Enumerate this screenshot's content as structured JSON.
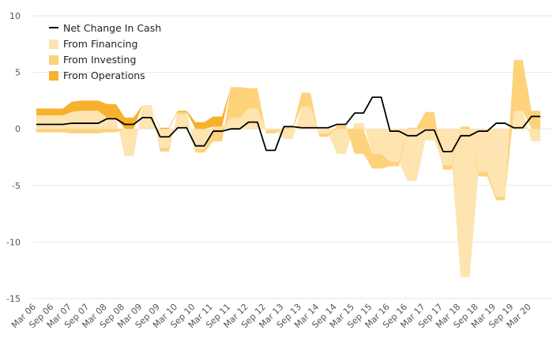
{
  "chart_data": {
    "type": "area",
    "title": "",
    "xlabel": "",
    "ylabel": "",
    "ylim": [
      -15,
      10
    ],
    "y_ticks": [
      10,
      5,
      0,
      -5,
      -10,
      -15
    ],
    "grid": "horizontal",
    "legend_position": "top-left",
    "x_tick_labels": [
      "Mar 06",
      "Sep 06",
      "Mar 07",
      "Sep 07",
      "Mar 08",
      "Sep 08",
      "Mar 09",
      "Sep 09",
      "Mar 10",
      "Sep 10",
      "Mar 11",
      "Sep 11",
      "Mar 12",
      "Sep 12",
      "Mar 13",
      "Sep 13",
      "Mar 14",
      "Sep 14",
      "Mar 15",
      "Sep 15",
      "Mar 16",
      "Sep 16",
      "Mar 17",
      "Sep 17",
      "Mar 18",
      "Sep 18",
      "Mar 19",
      "Sep 19",
      "Mar 20"
    ],
    "x_ticks_per_label": 2,
    "quarters": [
      "Mar 06",
      "Jun 06",
      "Sep 06",
      "Dec 06",
      "Mar 07",
      "Jun 07",
      "Sep 07",
      "Dec 07",
      "Mar 08",
      "Jun 08",
      "Sep 08",
      "Dec 08",
      "Mar 09",
      "Jun 09",
      "Sep 09",
      "Dec 09",
      "Mar 10",
      "Jun 10",
      "Sep 10",
      "Dec 10",
      "Mar 11",
      "Jun 11",
      "Sep 11",
      "Dec 11",
      "Mar 12",
      "Jun 12",
      "Sep 12",
      "Dec 12",
      "Mar 13",
      "Jun 13",
      "Sep 13",
      "Dec 13",
      "Mar 14",
      "Jun 14",
      "Sep 14",
      "Dec 14",
      "Mar 15",
      "Jun 15",
      "Sep 15",
      "Dec 15",
      "Mar 16",
      "Jun 16",
      "Sep 16",
      "Dec 16",
      "Mar 17",
      "Jun 17",
      "Sep 17",
      "Dec 17",
      "Mar 18",
      "Jun 18",
      "Sep 18",
      "Dec 18",
      "Mar 19",
      "Jun 19",
      "Sep 19",
      "Dec 19",
      "Mar 20",
      "Jun 20"
    ],
    "series": [
      {
        "name": "From Financing",
        "color": "#fde4b0",
        "values": [
          1.2,
          1.2,
          1.2,
          1.2,
          1.5,
          1.6,
          1.6,
          1.6,
          1.0,
          1.0,
          -2.4,
          -2.4,
          2.1,
          2.1,
          -1.7,
          -1.7,
          1.3,
          1.3,
          -1.8,
          -1.8,
          0.2,
          0.2,
          1.0,
          1.0,
          1.8,
          1.8,
          -0.1,
          -0.1,
          -0.9,
          -0.9,
          2.0,
          2.0,
          -0.4,
          -0.4,
          -2.2,
          -2.2,
          0.5,
          0.5,
          -2.2,
          -2.2,
          -2.9,
          -2.9,
          -4.6,
          -4.6,
          -1.0,
          -1.0,
          -3.2,
          -3.2,
          -13.1,
          -13.1,
          -3.8,
          -3.8,
          -6.0,
          -6.0,
          1.6,
          1.6,
          -1.1,
          -1.1
        ]
      },
      {
        "name": "From Investing",
        "color": "#fdd27a",
        "values": [
          -0.3,
          -0.3,
          -0.3,
          -0.3,
          -0.4,
          -0.4,
          -0.4,
          -0.4,
          -0.3,
          -0.3,
          0.0,
          0.0,
          0.0,
          0.0,
          -0.3,
          -0.3,
          0.2,
          0.2,
          -0.3,
          -0.3,
          -1.1,
          -1.1,
          2.7,
          2.7,
          1.8,
          1.8,
          -0.3,
          -0.3,
          0.1,
          0.1,
          1.2,
          1.2,
          -0.3,
          -0.3,
          0.3,
          0.3,
          -2.2,
          -2.2,
          -1.3,
          -1.3,
          -0.4,
          -0.4,
          0.1,
          0.1,
          1.5,
          1.5,
          -0.4,
          -0.4,
          0.2,
          0.2,
          -0.4,
          -0.4,
          -0.3,
          -0.3,
          4.5,
          4.5,
          1.6,
          1.6
        ]
      },
      {
        "name": "From Operations",
        "color": "#f7b12c",
        "values": [
          0.6,
          0.6,
          0.6,
          0.6,
          0.9,
          0.9,
          0.9,
          0.9,
          1.2,
          1.2,
          1.0,
          1.0,
          0.0,
          0.0,
          0.1,
          0.1,
          0.1,
          0.1,
          0.6,
          0.6,
          0.9,
          0.9,
          0.0,
          0.0,
          0.0,
          0.0,
          0.0,
          0.0,
          0.0,
          0.0,
          0.0,
          0.0,
          0.0,
          0.0,
          0.0,
          0.0,
          0.0,
          0.0,
          0.0,
          0.0,
          0.0,
          0.0,
          0.0,
          0.0,
          0.0,
          0.0,
          0.0,
          0.0,
          0.0,
          0.0,
          0.0,
          0.0,
          0.0,
          0.0,
          0.0,
          0.0,
          0.0,
          0.0
        ]
      },
      {
        "name": "Net Change In Cash",
        "color": "#000000",
        "values": [
          0.4,
          0.4,
          0.4,
          0.4,
          0.5,
          0.5,
          0.5,
          0.5,
          0.9,
          0.9,
          0.4,
          0.4,
          1.0,
          1.0,
          -0.7,
          -0.7,
          0.1,
          0.1,
          -1.5,
          -1.5,
          -0.2,
          -0.2,
          0.0,
          0.0,
          0.6,
          0.6,
          -1.9,
          -1.9,
          0.2,
          0.2,
          0.1,
          0.1,
          0.1,
          0.1,
          0.4,
          0.4,
          1.4,
          1.4,
          2.8,
          2.8,
          -0.2,
          -0.2,
          -0.6,
          -0.6,
          -0.1,
          -0.1,
          -2.0,
          -2.0,
          -0.6,
          -0.6,
          -0.2,
          -0.2,
          0.5,
          0.5,
          0.1,
          0.1,
          1.1,
          1.1
        ]
      }
    ],
    "legend": [
      "Net Change In Cash",
      "From Financing",
      "From Investing",
      "From Operations"
    ]
  }
}
